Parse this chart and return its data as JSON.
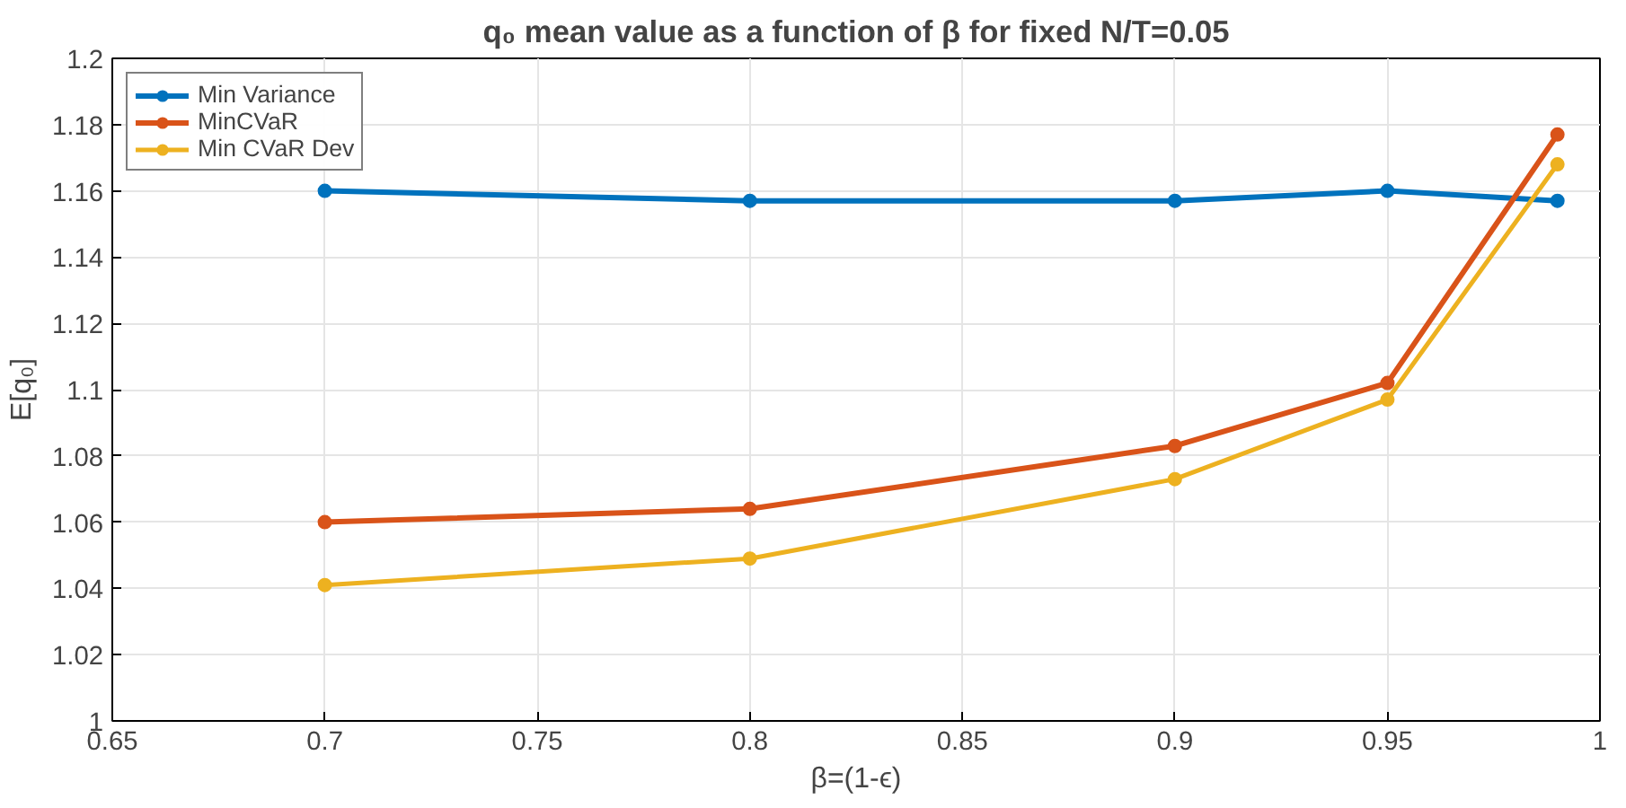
{
  "chart_data": {
    "type": "line",
    "title": "q₀ mean value as a function of β for fixed N/T=0.05",
    "xlabel": "β=(1-ϵ)",
    "ylabel": "E[q₀]",
    "x": [
      0.7,
      0.8,
      0.9,
      0.95,
      0.99
    ],
    "series": [
      {
        "name": "Min Variance",
        "color": "#0072bd",
        "values": [
          1.16,
          1.157,
          1.157,
          1.16,
          1.157
        ]
      },
      {
        "name": "MinCVaR",
        "color": "#d95319",
        "values": [
          1.06,
          1.064,
          1.083,
          1.102,
          1.177
        ]
      },
      {
        "name": "Min CVaR Dev",
        "color": "#edb120",
        "values": [
          1.041,
          1.049,
          1.073,
          1.097,
          1.168
        ]
      }
    ],
    "xlim": [
      0.65,
      1
    ],
    "xticks": [
      0.65,
      0.7,
      0.75,
      0.8,
      0.85,
      0.9,
      0.95,
      1
    ],
    "ylim": [
      1,
      1.2
    ],
    "yticks": [
      1,
      1.02,
      1.04,
      1.06,
      1.08,
      1.1,
      1.12,
      1.14,
      1.16,
      1.18,
      1.2
    ],
    "grid": true,
    "legend": "top left",
    "marker": "circle",
    "line_style": "solid"
  }
}
